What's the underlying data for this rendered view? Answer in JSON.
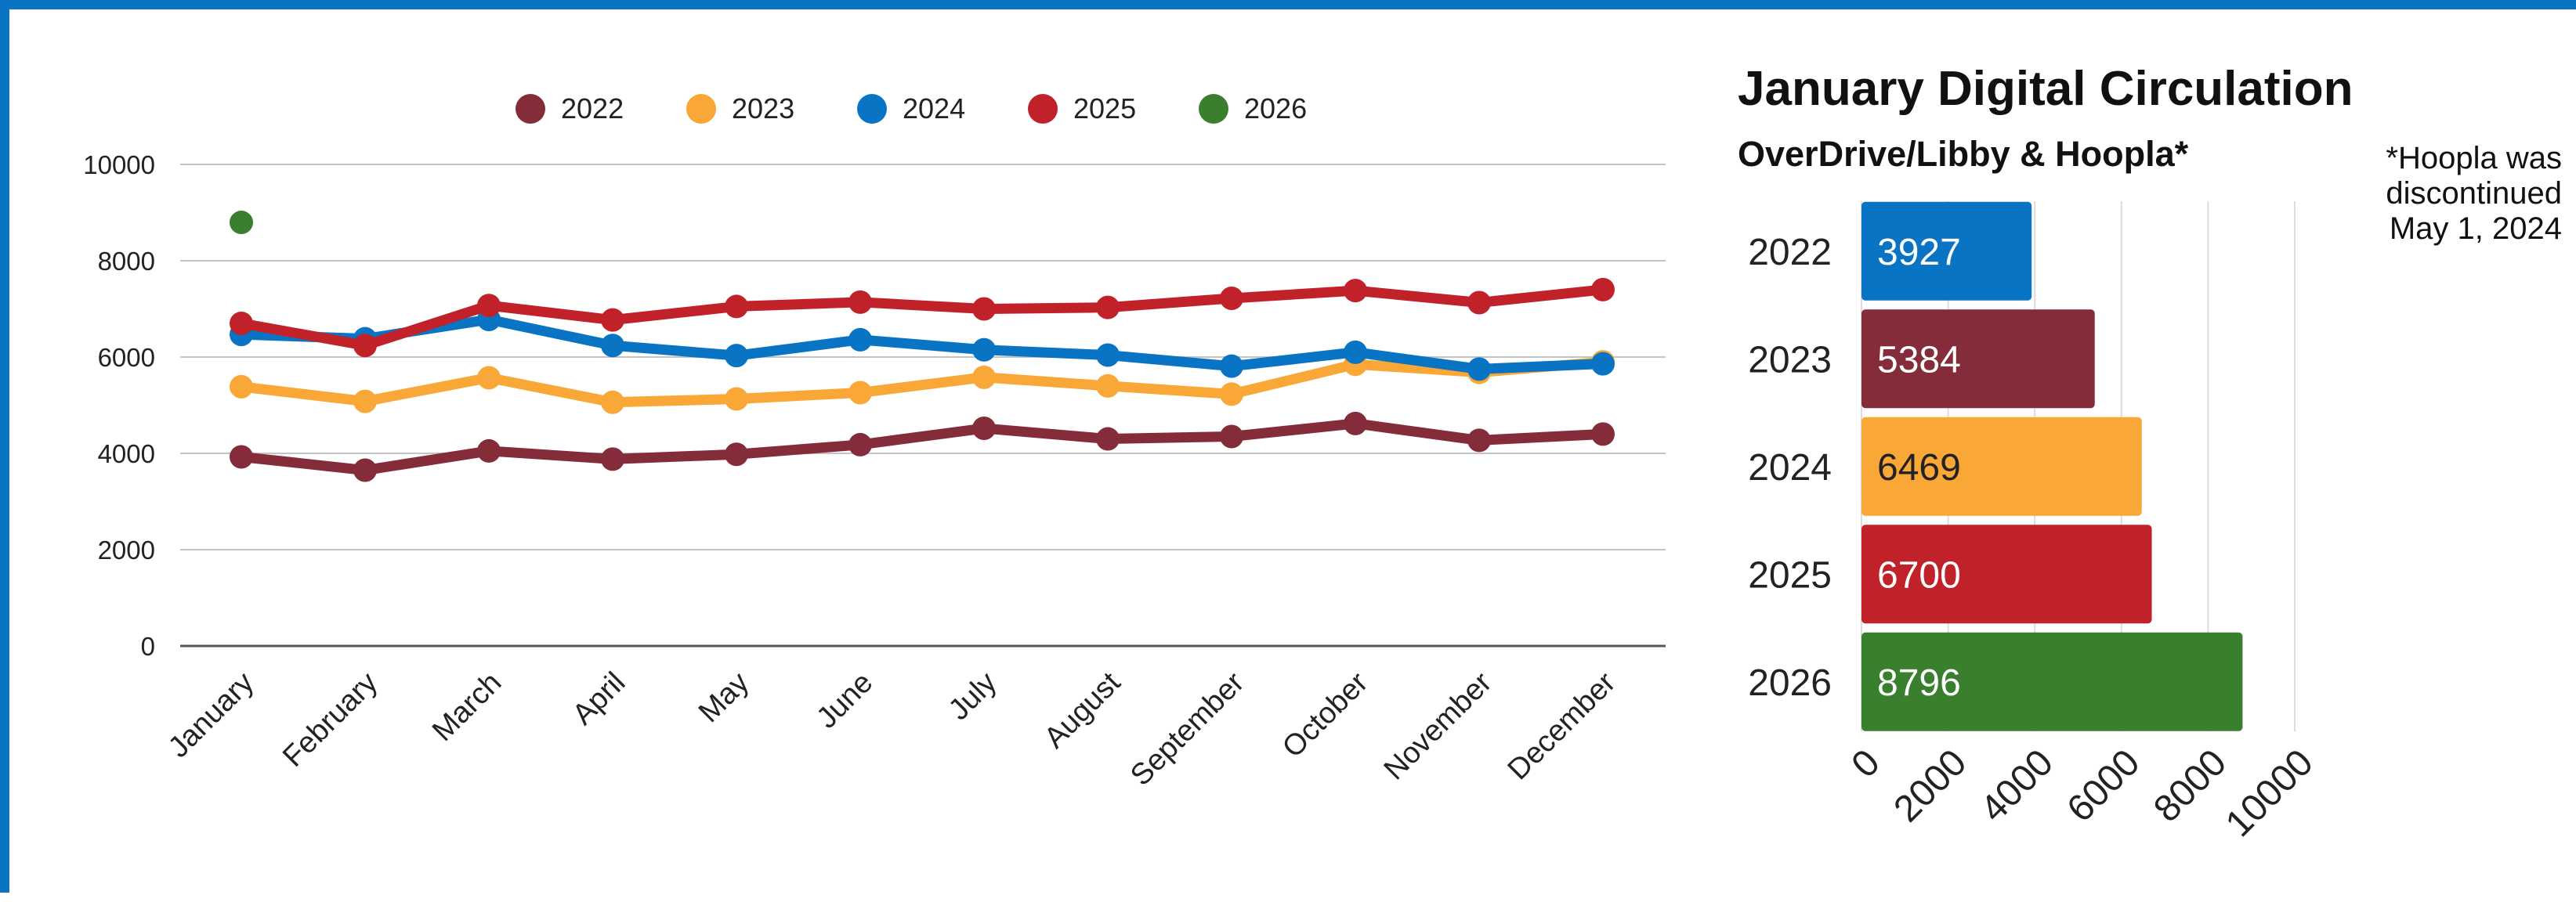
{
  "chart_data": [
    {
      "type": "line",
      "categories": [
        "January",
        "February",
        "March",
        "April",
        "May",
        "June",
        "July",
        "August",
        "September",
        "October",
        "November",
        "December"
      ],
      "ylim": [
        0,
        10000
      ],
      "yticks": [
        0,
        2000,
        4000,
        6000,
        8000,
        10000
      ],
      "grid": true,
      "legend": "top",
      "series": [
        {
          "name": "2022",
          "color": "#852c3a",
          "values": [
            3927,
            3650,
            4050,
            3880,
            3980,
            4180,
            4520,
            4300,
            4350,
            4620,
            4270,
            4400
          ]
        },
        {
          "name": "2023",
          "color": "#f9a737",
          "values": [
            5384,
            5080,
            5570,
            5060,
            5130,
            5260,
            5580,
            5400,
            5230,
            5850,
            5680,
            5900
          ]
        },
        {
          "name": "2024",
          "color": "#0a74c4",
          "values": [
            6469,
            6380,
            6780,
            6240,
            6030,
            6360,
            6150,
            6040,
            5810,
            6100,
            5750,
            5860
          ]
        },
        {
          "name": "2025",
          "color": "#c1222a",
          "values": [
            6700,
            6240,
            7070,
            6770,
            7050,
            7140,
            7000,
            7030,
            7220,
            7380,
            7130,
            7400
          ]
        },
        {
          "name": "2026",
          "color": "#3a7f2e",
          "values": [
            8796,
            null,
            null,
            null,
            null,
            null,
            null,
            null,
            null,
            null,
            null,
            null
          ]
        }
      ]
    },
    {
      "type": "bar",
      "orientation": "horizontal",
      "title": "January Digital Circulation",
      "subtitle": "OverDrive/Libby & Hoopla*",
      "note": [
        "*Hoopla was",
        "discontinued",
        "May 1, 2024"
      ],
      "categories": [
        "2022",
        "2023",
        "2024",
        "2025",
        "2026"
      ],
      "values": [
        3927,
        5384,
        6469,
        6700,
        8796
      ],
      "colors": [
        "#0a74c4",
        "#852c3a",
        "#f9a737",
        "#c1222a",
        "#3a7f2e"
      ],
      "value_label_colors": [
        "#ffffff",
        "#ffffff",
        "#222222",
        "#ffffff",
        "#ffffff"
      ],
      "xlim": [
        0,
        10000
      ],
      "xticks": [
        0,
        2000,
        4000,
        6000,
        8000,
        10000
      ],
      "grid": true
    }
  ]
}
